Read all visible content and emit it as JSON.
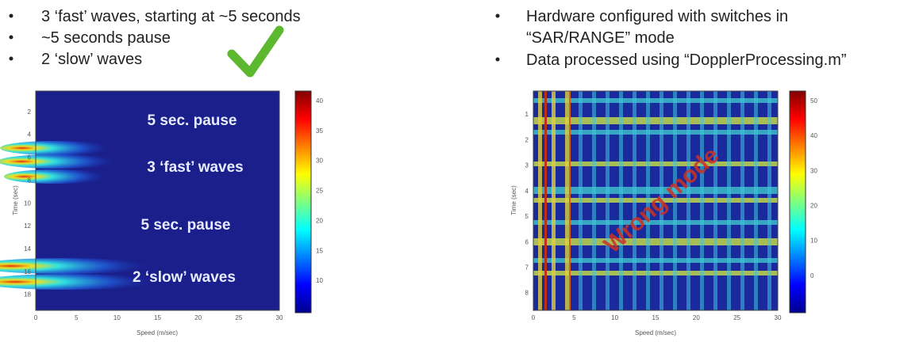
{
  "left": {
    "bullets": [
      "3 ‘fast’ waves, starting at ~5 seconds",
      "~5 seconds pause",
      "2 ‘slow’ waves"
    ],
    "figure": {
      "annotations": [
        "5 sec. pause",
        "3 ‘fast’ waves",
        "5 sec. pause",
        "2 ‘slow’ waves"
      ],
      "y_label": "Time (sec)",
      "x_label": "Speed (m/sec)",
      "yticks": [
        "2",
        "4",
        "6",
        "8",
        "10",
        "12",
        "14",
        "16",
        "18"
      ],
      "xticks": [
        "0",
        "5",
        "10",
        "15",
        "20",
        "25",
        "30"
      ],
      "colorbar_ticks": [
        "40",
        "35",
        "30",
        "25",
        "20",
        "15",
        "10"
      ]
    }
  },
  "right": {
    "bullets": [
      "Hardware configured with switches in “SAR/RANGE” mode",
      "Data processed using “DopplerProcessing.m”"
    ],
    "figure": {
      "annotation": "Wrong mode",
      "y_label": "Time (sec)",
      "x_label": "Speed (m/sec)",
      "yticks": [
        "1",
        "2",
        "3",
        "4",
        "5",
        "6",
        "7",
        "8"
      ],
      "xticks": [
        "0",
        "5",
        "10",
        "15",
        "20",
        "25",
        "30"
      ],
      "colorbar_ticks": [
        "50",
        "40",
        "30",
        "20",
        "10",
        "0"
      ]
    }
  }
}
